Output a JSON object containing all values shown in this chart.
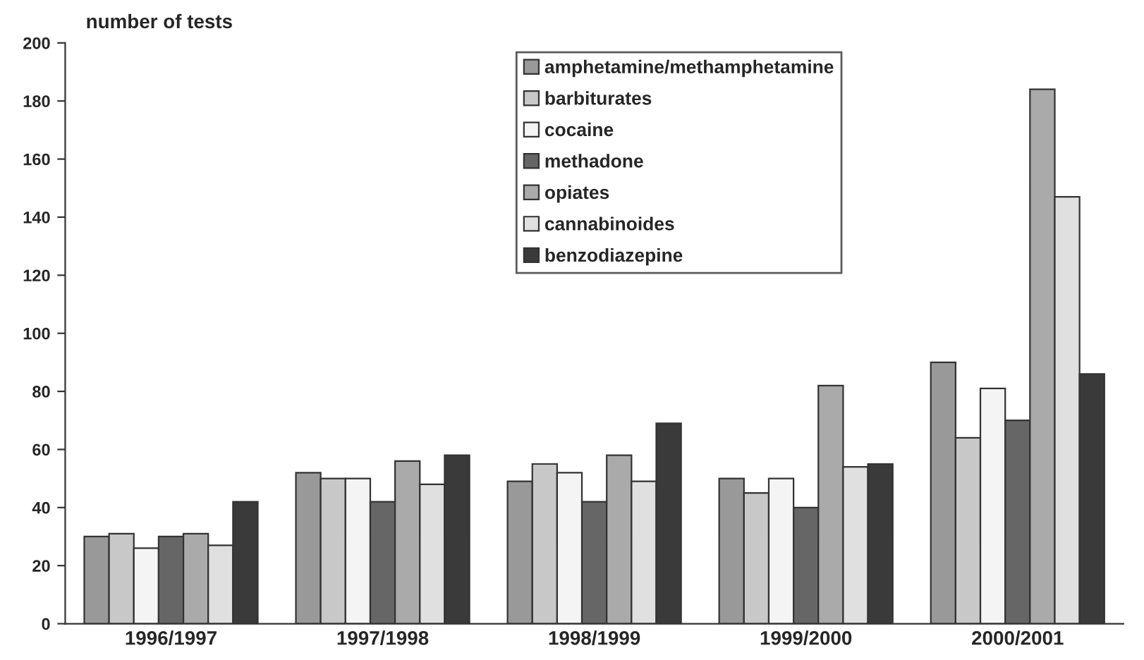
{
  "chart_data": {
    "type": "bar",
    "ylabel": "number of tests",
    "categories": [
      "1996/1997",
      "1997/1998",
      "1998/1999",
      "1999/2000",
      "2000/2001"
    ],
    "series": [
      {
        "name": "amphetamine/methamphetamine",
        "color": "#999999",
        "values": [
          30,
          52,
          49,
          50,
          90
        ]
      },
      {
        "name": "barbiturates",
        "color": "#c8c8c8",
        "values": [
          31,
          50,
          55,
          45,
          64
        ]
      },
      {
        "name": "cocaine",
        "color": "#f4f4f4",
        "values": [
          26,
          50,
          52,
          50,
          81
        ]
      },
      {
        "name": "methadone",
        "color": "#666666",
        "values": [
          30,
          42,
          42,
          40,
          70
        ]
      },
      {
        "name": "opiates",
        "color": "#aaaaaa",
        "values": [
          31,
          56,
          58,
          82,
          184
        ]
      },
      {
        "name": "cannabinoides",
        "color": "#e0e0e0",
        "values": [
          27,
          48,
          49,
          54,
          147
        ]
      },
      {
        "name": "benzodiazepine",
        "color": "#3a3a3a",
        "values": [
          42,
          58,
          69,
          55,
          86
        ]
      }
    ],
    "ylim": [
      0,
      200
    ],
    "yticks": [
      0,
      20,
      40,
      60,
      80,
      100,
      120,
      140,
      160,
      180,
      200
    ],
    "grid": false,
    "legend": "top"
  }
}
